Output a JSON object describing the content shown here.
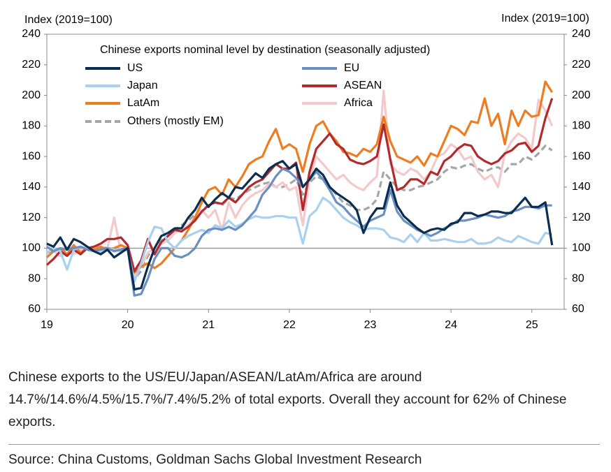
{
  "chart_data": {
    "type": "line",
    "title": "Chinese exports nominal level by destination (seasonally adjusted)",
    "y_label": "Index (2019=100)",
    "y2_label": "Index (2019=100)",
    "x": [
      2019,
      2019.083,
      2019.167,
      2019.25,
      2019.333,
      2019.417,
      2019.5,
      2019.583,
      2019.667,
      2019.75,
      2019.833,
      2019.917,
      2020,
      2020.083,
      2020.167,
      2020.25,
      2020.333,
      2020.417,
      2020.5,
      2020.583,
      2020.667,
      2020.75,
      2020.833,
      2020.917,
      2021,
      2021.083,
      2021.167,
      2021.25,
      2021.333,
      2021.417,
      2021.5,
      2021.583,
      2021.667,
      2021.75,
      2021.833,
      2021.917,
      2022,
      2022.083,
      2022.167,
      2022.25,
      2022.333,
      2022.417,
      2022.5,
      2022.583,
      2022.667,
      2022.75,
      2022.833,
      2022.917,
      2023,
      2023.083,
      2023.167,
      2023.25,
      2023.333,
      2023.417,
      2023.5,
      2023.583,
      2023.667,
      2023.75,
      2023.833,
      2023.917,
      2024,
      2024.083,
      2024.167,
      2024.25,
      2024.333,
      2024.417,
      2024.5,
      2024.583,
      2024.667,
      2024.75,
      2024.833,
      2024.917,
      2025,
      2025.083,
      2025.167,
      2025.25
    ],
    "xlim": [
      2019,
      2025.4
    ],
    "xticks": [
      {
        "value": 2019,
        "label": "19"
      },
      {
        "value": 2020,
        "label": "20"
      },
      {
        "value": 2021,
        "label": "21"
      },
      {
        "value": 2022,
        "label": "22"
      },
      {
        "value": 2023,
        "label": "23"
      },
      {
        "value": 2024,
        "label": "24"
      },
      {
        "value": 2025,
        "label": "25"
      }
    ],
    "ylim": [
      60,
      240
    ],
    "yticks": [
      60,
      80,
      100,
      120,
      140,
      160,
      180,
      200,
      220,
      240
    ],
    "y2lim": [
      60,
      240
    ],
    "y2ticks": [
      60,
      80,
      100,
      120,
      140,
      160,
      180,
      200,
      220,
      240
    ],
    "reference_line": 100,
    "series": [
      {
        "name": "US",
        "color": "#0b2d4f",
        "values": [
          103,
          101,
          107,
          99,
          106,
          104,
          101,
          98,
          96,
          99,
          94,
          97,
          100,
          73,
          74,
          88,
          100,
          108,
          110,
          113,
          113,
          120,
          125,
          133,
          127,
          132,
          136,
          133,
          140,
          139,
          144,
          149,
          146,
          152,
          155,
          157,
          152,
          155,
          140,
          145,
          152,
          148,
          140,
          136,
          133,
          130,
          125,
          110,
          120,
          126,
          126,
          143,
          128,
          121,
          117,
          113,
          110,
          112,
          113,
          112,
          116,
          117,
          123,
          123,
          121,
          122,
          124,
          124,
          123,
          123,
          128,
          133,
          127,
          127,
          130,
          102
        ]
      },
      {
        "name": "EU",
        "color": "#6a8fc0",
        "values": [
          101,
          98,
          100,
          99,
          100,
          101,
          99,
          98,
          99,
          100,
          98,
          99,
          100,
          69,
          70,
          80,
          93,
          100,
          100,
          95,
          94,
          96,
          100,
          108,
          112,
          113,
          112,
          114,
          112,
          115,
          120,
          125,
          135,
          140,
          147,
          152,
          150,
          146,
          140,
          145,
          150,
          145,
          138,
          130,
          127,
          122,
          118,
          114,
          118,
          120,
          122,
          138,
          124,
          118,
          115,
          112,
          110,
          108,
          110,
          113,
          115,
          118,
          118,
          119,
          120,
          122,
          121,
          120,
          121,
          124,
          125,
          127,
          127,
          126,
          128,
          128
        ]
      },
      {
        "name": "Japan",
        "color": "#a9d1ef",
        "values": [
          97,
          100,
          98,
          86,
          99,
          101,
          100,
          98,
          97,
          100,
          99,
          98,
          99,
          78,
          90,
          104,
          114,
          113,
          104,
          100,
          105,
          108,
          110,
          112,
          110,
          115,
          113,
          118,
          114,
          116,
          119,
          121,
          120,
          120,
          121,
          121,
          120,
          120,
          103,
          121,
          125,
          133,
          130,
          125,
          120,
          117,
          115,
          112,
          113,
          113,
          112,
          107,
          106,
          104,
          109,
          104,
          110,
          105,
          105,
          106,
          105,
          104,
          104,
          106,
          103,
          103,
          104,
          107,
          105,
          104,
          108,
          106,
          104,
          103,
          110,
          109
        ]
      },
      {
        "name": "ASEAN",
        "color": "#b22a2e",
        "values": [
          89,
          93,
          98,
          95,
          99,
          96,
          100,
          101,
          103,
          106,
          106,
          107,
          102,
          85,
          92,
          106,
          96,
          104,
          108,
          112,
          111,
          114,
          118,
          124,
          128,
          130,
          129,
          133,
          130,
          135,
          140,
          143,
          145,
          150,
          155,
          152,
          152,
          156,
          125,
          150,
          165,
          170,
          175,
          168,
          165,
          158,
          156,
          155,
          157,
          160,
          181,
          158,
          138,
          140,
          145,
          145,
          142,
          150,
          148,
          157,
          160,
          165,
          168,
          167,
          160,
          157,
          155,
          157,
          162,
          164,
          168,
          169,
          163,
          167,
          185,
          198
        ]
      },
      {
        "name": "LatAm",
        "color": "#ee7d22",
        "values": [
          94,
          98,
          100,
          96,
          102,
          97,
          100,
          99,
          101,
          99,
          100,
          102,
          100,
          84,
          88,
          90,
          87,
          90,
          95,
          100,
          105,
          112,
          120,
          130,
          138,
          140,
          135,
          145,
          140,
          147,
          155,
          158,
          160,
          170,
          178,
          165,
          168,
          165,
          150,
          168,
          180,
          183,
          175,
          170,
          163,
          162,
          160,
          165,
          163,
          168,
          186,
          170,
          160,
          158,
          156,
          160,
          154,
          162,
          160,
          170,
          180,
          178,
          174,
          183,
          182,
          198,
          180,
          188,
          168,
          190,
          180,
          190,
          186,
          187,
          209,
          202
        ]
      },
      {
        "name": "Africa",
        "color": "#f4c9cb",
        "values": [
          94,
          98,
          95,
          100,
          96,
          99,
          100,
          101,
          98,
          100,
          120,
          97,
          100,
          82,
          88,
          97,
          100,
          103,
          105,
          110,
          112,
          115,
          120,
          125,
          120,
          125,
          112,
          130,
          120,
          128,
          133,
          136,
          138,
          142,
          140,
          143,
          138,
          140,
          115,
          145,
          160,
          155,
          150,
          145,
          148,
          143,
          140,
          138,
          143,
          147,
          203,
          155,
          150,
          148,
          152,
          150,
          145,
          150,
          160,
          162,
          168,
          165,
          158,
          160,
          150,
          145,
          148,
          140,
          162,
          170,
          175,
          172,
          165,
          197,
          190,
          180
        ]
      },
      {
        "name": "Others (mostly EM)",
        "color": "#a6a6a6",
        "dashed": true,
        "values": [
          97,
          98,
          99,
          100,
          100,
          99,
          100,
          100,
          101,
          100,
          100,
          101,
          100,
          80,
          85,
          95,
          100,
          105,
          108,
          112,
          115,
          118,
          122,
          125,
          128,
          130,
          128,
          133,
          132,
          135,
          138,
          140,
          142,
          143,
          140,
          140,
          142,
          145,
          135,
          143,
          147,
          145,
          140,
          135,
          130,
          128,
          125,
          125,
          127,
          132,
          150,
          145,
          140,
          138,
          138,
          140,
          141,
          143,
          145,
          150,
          153,
          152,
          154,
          155,
          152,
          150,
          152,
          153,
          150,
          155,
          155,
          160,
          158,
          162,
          167,
          164
        ]
      }
    ]
  },
  "note": "Chinese exports to the US/EU/Japan/ASEAN/LatAm/Africa are around 14.7%/14.6%/4.5%/15.7%/7.4%/5.2% of total exports. Overall they account for 62% of Chinese exports.",
  "source": "Source: China Customs, Goldman Sachs Global Investment Research"
}
